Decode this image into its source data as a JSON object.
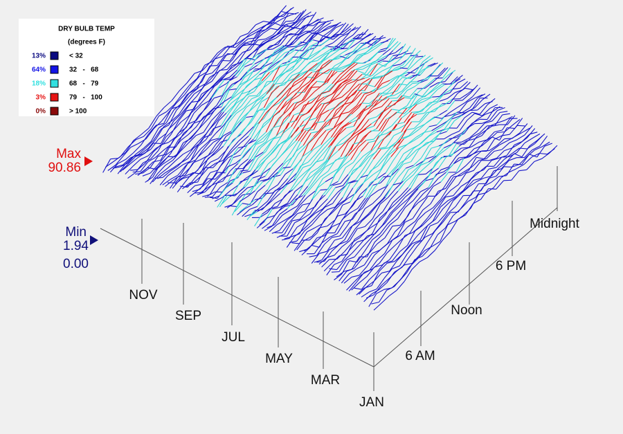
{
  "legend": {
    "title": "DRY BULB TEMP",
    "subtitle": "(degrees F)",
    "rows": [
      {
        "percent": "13%",
        "range": "< 32",
        "color": "#0a0a80"
      },
      {
        "percent": "64%",
        "range": "32   -   68",
        "color": "#1414e6"
      },
      {
        "percent": "18%",
        "range": "68   -   79",
        "color": "#33e0e0"
      },
      {
        "percent": "3%",
        "range": "79   -   100",
        "color": "#e61414"
      },
      {
        "percent": "0%",
        "range": "> 100",
        "color": "#8a0a0a"
      }
    ]
  },
  "max": {
    "label": "Max",
    "value": "90.86"
  },
  "min": {
    "label": "Min",
    "value": "1.94",
    "base": "0.00"
  },
  "months": [
    "NOV",
    "SEP",
    "JUL",
    "MAY",
    "MAR",
    "JAN"
  ],
  "hours": [
    "6 AM",
    "Noon",
    "6 PM",
    "Midnight"
  ]
}
